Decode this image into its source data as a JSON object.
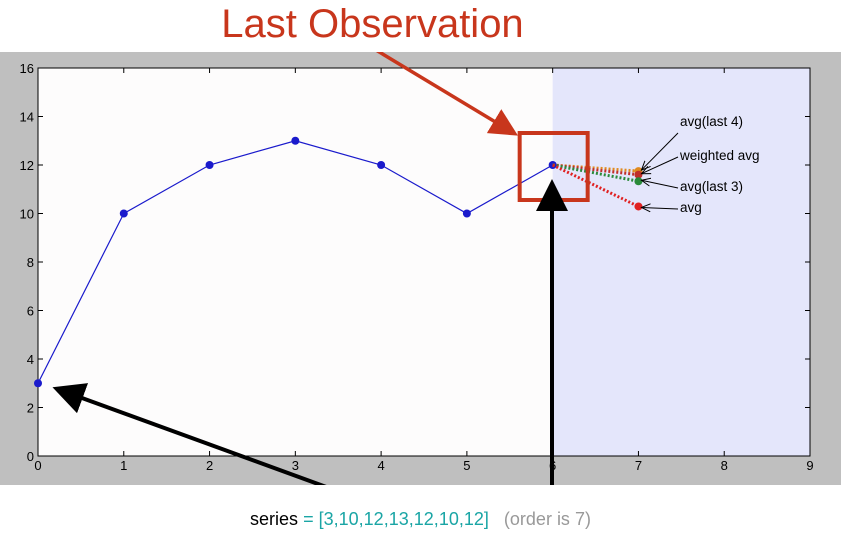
{
  "chart_data": {
    "type": "line",
    "title": "Last Observation",
    "x": [
      0,
      1,
      2,
      3,
      4,
      5,
      6
    ],
    "values": [
      3,
      10,
      12,
      13,
      12,
      10,
      12
    ],
    "xlim": [
      0,
      9
    ],
    "ylim": [
      0,
      16
    ],
    "xticks": [
      "0",
      "1",
      "2",
      "3",
      "4",
      "5",
      "6",
      "7",
      "8",
      "9"
    ],
    "yticks": [
      "0",
      "2",
      "4",
      "6",
      "8",
      "10",
      "12",
      "14",
      "16"
    ],
    "forecast_region": [
      6,
      9
    ],
    "forecasts": [
      {
        "name": "avg(last 4)",
        "x": 7,
        "y": 11.75,
        "color": "#e08a1e"
      },
      {
        "name": "weighted avg",
        "x": 7,
        "y": 11.6,
        "color": "#c0302a"
      },
      {
        "name": "avg(last 3)",
        "x": 7,
        "y": 11.33,
        "color": "#2a8a3a"
      },
      {
        "name": "avg",
        "x": 7,
        "y": 10.29,
        "color": "#e02020"
      }
    ],
    "colors": {
      "series": "#1a1acc",
      "highlight": "#c8361c",
      "forecast_bg": "#e4e6fb",
      "plot_bg": "#fdfcfc"
    }
  },
  "caption": {
    "label": "series",
    "equals": " = ",
    "open_bracket": "[",
    "values": [
      "3",
      "10",
      "12",
      "13",
      "12",
      "10",
      "12"
    ],
    "comma": ",",
    "close_bracket": "]",
    "note": "(order is 7)"
  }
}
